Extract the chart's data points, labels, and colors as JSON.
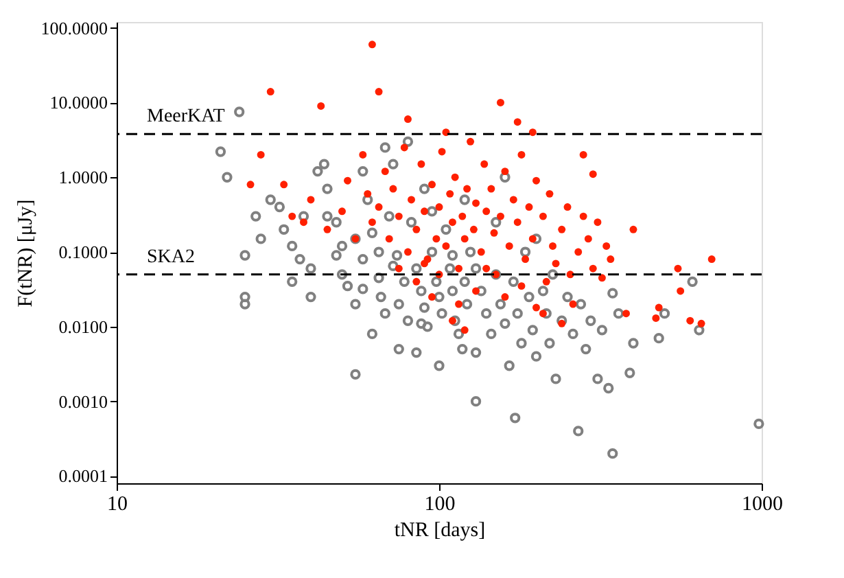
{
  "chart_data": {
    "type": "scatter",
    "xlabel": "tNR [days]",
    "ylabel": "F(tNR) [μJy]",
    "log": "xy",
    "grid": false,
    "marker": "circle",
    "xlim": [
      10,
      1000
    ],
    "xticks": [
      10,
      100,
      {
        "value": 1000,
        "label": "1000"
      }
    ],
    "ylim": [
      8e-05,
      120
    ],
    "yticks": [
      {
        "value": 100,
        "label": "100.0000"
      },
      {
        "value": 10,
        "label": "10.0000"
      },
      {
        "value": 1,
        "label": "1.0000"
      },
      {
        "value": 0.1,
        "label": "0.1000"
      },
      {
        "value": 0.01,
        "label": "0.0100"
      },
      {
        "value": 0.001,
        "label": "0.0010"
      },
      {
        "value": 0.0001,
        "label": "0.0001"
      }
    ],
    "ref_lines": [
      {
        "axis": "y",
        "value": 3.8,
        "label": "MeerKAT",
        "color": "#000000",
        "line_style": "dashed"
      },
      {
        "axis": "y",
        "value": 0.05,
        "label": "SKA2",
        "color": "#000000",
        "line_style": "dashed"
      }
    ],
    "series": [
      {
        "color": "#808080",
        "x": [
          24,
          21,
          22,
          25,
          25,
          25,
          27,
          28,
          30,
          32,
          33,
          35,
          37,
          40,
          38,
          42,
          44,
          45,
          48,
          50,
          50,
          52,
          55,
          55,
          58,
          60,
          62,
          65,
          66,
          68,
          70,
          72,
          74,
          75,
          78,
          80,
          82,
          85,
          88,
          90,
          92,
          95,
          98,
          100,
          102,
          105,
          108,
          110,
          112,
          115,
          118,
          120,
          122,
          125,
          130,
          130,
          135,
          140,
          145,
          150,
          155,
          160,
          165,
          170,
          172,
          175,
          180,
          185,
          190,
          195,
          200,
          210,
          215,
          220,
          225,
          230,
          240,
          250,
          260,
          270,
          275,
          285,
          295,
          310,
          320,
          335,
          345,
          345,
          360,
          390,
          400,
          480,
          500,
          610,
          640,
          980,
          68,
          80,
          58,
          90,
          120,
          45,
          55,
          35,
          40,
          62,
          75,
          100,
          85,
          150,
          200,
          160,
          95,
          65,
          110,
          130,
          48,
          72,
          58,
          88
        ],
        "values": [
          7.5,
          2.2,
          1,
          0.09,
          0.025,
          0.02,
          0.3,
          0.15,
          0.5,
          0.4,
          0.2,
          0.12,
          0.08,
          0.06,
          0.3,
          1.2,
          1.5,
          0.7,
          0.25,
          0.12,
          0.05,
          0.035,
          0.02,
          0.0023,
          0.08,
          0.5,
          0.18,
          0.045,
          0.025,
          0.015,
          0.3,
          1.5,
          0.09,
          0.02,
          0.04,
          0.012,
          0.25,
          0.06,
          0.03,
          0.018,
          0.01,
          0.1,
          0.04,
          0.025,
          0.015,
          0.2,
          0.06,
          0.03,
          0.012,
          0.008,
          0.005,
          0.04,
          0.02,
          0.1,
          0.0045,
          0.001,
          0.03,
          0.015,
          0.008,
          0.05,
          0.02,
          0.011,
          0.003,
          0.04,
          0.0006,
          0.015,
          0.006,
          0.1,
          0.025,
          0.009,
          0.004,
          0.03,
          0.015,
          0.006,
          0.05,
          0.002,
          0.012,
          0.025,
          0.008,
          0.0004,
          0.02,
          0.005,
          0.012,
          0.002,
          0.009,
          0.0015,
          0.028,
          0.0002,
          0.015,
          0.0024,
          0.006,
          0.007,
          0.015,
          0.04,
          0.009,
          0.0005,
          2.5,
          3,
          1.2,
          0.7,
          0.5,
          0.3,
          0.15,
          0.04,
          0.025,
          0.008,
          0.005,
          0.003,
          0.0045,
          0.25,
          0.15,
          1.0,
          0.35,
          0.1,
          0.09,
          0.06,
          0.09,
          0.065,
          0.032,
          0.011
        ]
      },
      {
        "color": "#ff2000",
        "x": [
          62,
          65,
          30,
          43,
          155,
          175,
          195,
          105,
          80,
          280,
          300,
          28,
          26,
          33,
          400,
          550,
          700,
          560,
          600,
          650,
          470,
          480,
          380,
          35,
          38,
          40,
          45,
          50,
          52,
          55,
          58,
          60,
          62,
          65,
          68,
          70,
          72,
          75,
          78,
          80,
          82,
          85,
          88,
          90,
          92,
          95,
          98,
          100,
          102,
          105,
          108,
          110,
          112,
          115,
          118,
          120,
          122,
          125,
          128,
          130,
          135,
          138,
          140,
          145,
          148,
          150,
          155,
          160,
          165,
          170,
          175,
          180,
          185,
          190,
          195,
          200,
          210,
          215,
          220,
          225,
          230,
          240,
          250,
          255,
          260,
          270,
          280,
          290,
          300,
          310,
          320,
          330,
          340,
          100,
          90,
          130,
          115,
          160,
          200,
          85,
          140,
          75,
          95,
          110,
          120,
          240,
          180,
          210
        ],
        "values": [
          60,
          14,
          14,
          9,
          10,
          5.5,
          4,
          4,
          6,
          2,
          1.1,
          2,
          0.8,
          0.8,
          0.2,
          0.06,
          0.08,
          0.03,
          0.012,
          0.011,
          0.013,
          0.018,
          0.015,
          0.3,
          0.25,
          0.5,
          0.2,
          0.35,
          0.9,
          0.15,
          2,
          0.6,
          0.25,
          0.4,
          1.2,
          0.15,
          0.7,
          0.3,
          2.5,
          0.1,
          0.5,
          0.2,
          1.5,
          0.35,
          0.08,
          0.8,
          0.15,
          0.4,
          2.2,
          0.12,
          0.6,
          0.25,
          1.0,
          0.06,
          0.3,
          0.15,
          0.7,
          3,
          0.2,
          0.45,
          0.1,
          1.5,
          0.35,
          0.7,
          0.18,
          0.05,
          0.3,
          1.2,
          0.12,
          0.5,
          0.25,
          2,
          0.08,
          0.4,
          0.15,
          0.9,
          0.3,
          0.04,
          0.6,
          0.12,
          0.07,
          0.2,
          0.4,
          0.05,
          0.02,
          0.1,
          0.3,
          0.15,
          0.06,
          0.25,
          0.045,
          0.12,
          0.08,
          0.05,
          0.07,
          0.03,
          0.02,
          0.025,
          0.018,
          0.04,
          0.06,
          0.06,
          0.025,
          0.012,
          0.009,
          0.011,
          0.035,
          0.015
        ]
      }
    ]
  }
}
